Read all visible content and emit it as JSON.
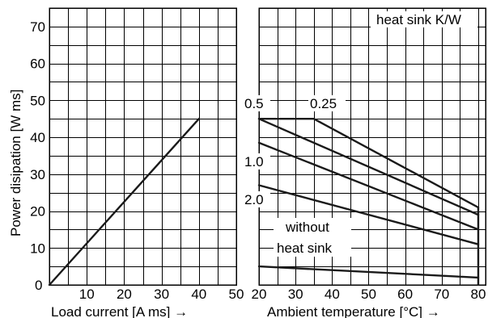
{
  "chart_data": [
    {
      "type": "line",
      "xlabel": "Load current [A ms] →",
      "ylabel": "Power disipation [W ms]",
      "xlim": [
        0,
        50
      ],
      "ylim": [
        0,
        75
      ],
      "grid": true,
      "x_ticks": [
        "0",
        "10",
        "20",
        "30",
        "40",
        "50"
      ],
      "y_ticks": [
        "10",
        "20",
        "30",
        "40",
        "50",
        "60",
        "70"
      ],
      "series": [
        {
          "x": [
            0,
            40
          ],
          "y": [
            0,
            45
          ]
        }
      ]
    },
    {
      "type": "line",
      "xlabel": "Ambient temperature [°C] →",
      "xlim": [
        20,
        82
      ],
      "ylim": [
        0,
        75
      ],
      "grid": true,
      "x_ticks": [
        "20",
        "30",
        "40",
        "50",
        "60",
        "70",
        "80"
      ],
      "legend_title": "heat sink K/W",
      "series": [
        {
          "name": "0.25",
          "x": [
            20,
            35,
            80
          ],
          "y": [
            45,
            45,
            21
          ]
        },
        {
          "name": "0.5",
          "x": [
            20,
            80
          ],
          "y": [
            45,
            19
          ]
        },
        {
          "name": "1.0",
          "x": [
            20,
            80
          ],
          "y": [
            38.5,
            15
          ]
        },
        {
          "name": "2.0",
          "x": [
            20,
            80
          ],
          "y": [
            27,
            11
          ]
        },
        {
          "name": "without heat sink",
          "x": [
            20,
            80
          ],
          "y": [
            5,
            2
          ]
        }
      ],
      "annotations": [
        "0.5",
        "0.25",
        "1.0",
        "2.0",
        "without",
        "heat sink"
      ],
      "cutoff": {
        "x": 80,
        "y": [
          0,
          21
        ]
      }
    }
  ]
}
